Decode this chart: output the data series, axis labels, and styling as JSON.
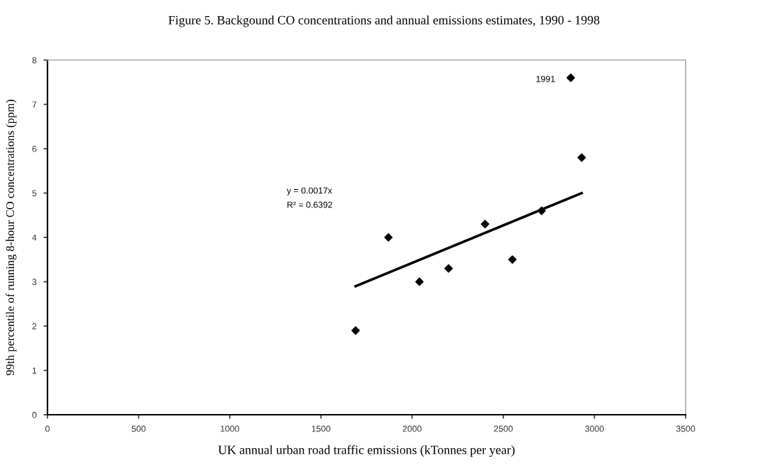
{
  "chart_data": {
    "type": "scatter",
    "title": "Figure 5. Backgound CO concentrations and annual emissions estimates, 1990 - 1998",
    "xlabel": "UK annual urban road traffic emissions (kTonnes per year)",
    "ylabel": "99th percentile of running 8-hour CO concentrations (ppm)",
    "series": [
      {
        "color": "#000000",
        "marker": "diamond",
        "x": [
          1690,
          1870,
          2040,
          2200,
          2400,
          2550,
          2710,
          2930
        ],
        "values": [
          1.9,
          4.0,
          3.0,
          3.3,
          4.3,
          3.5,
          4.6,
          5.8
        ]
      },
      {
        "color": "#000000",
        "marker": "diamond",
        "x": [
          2870
        ],
        "values": [
          7.6
        ]
      },
      {
        "type": "line",
        "color": "#000000",
        "x": [
          1690,
          2930
        ],
        "values": [
          2.9,
          5.0
        ]
      }
    ],
    "annotations": [
      "y = 0.0017x",
      "R² = 0.6392",
      {
        "text": "1991",
        "x": 2870,
        "y": 7.6
      }
    ],
    "xlim": [
      0,
      3500
    ],
    "xticks": [
      0,
      500,
      1000,
      1500,
      2000,
      2500,
      3000,
      3500
    ],
    "ylim": [
      0,
      8
    ],
    "yticks": [
      0,
      1,
      2,
      3,
      4,
      5,
      6,
      7,
      8
    ],
    "grid": false,
    "legend": false
  }
}
